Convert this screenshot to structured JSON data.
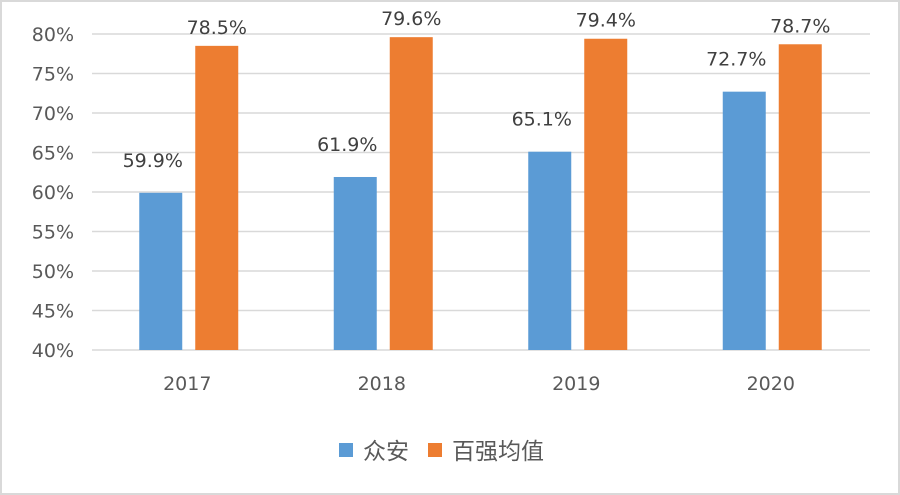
{
  "chart_data": {
    "type": "bar",
    "categories": [
      "2017",
      "2018",
      "2019",
      "2020"
    ],
    "series": [
      {
        "name": "众安",
        "values": [
          59.9,
          61.9,
          65.1,
          72.7
        ],
        "labels": [
          "59.9%",
          "61.9%",
          "65.1%",
          "72.7%"
        ],
        "color": "#5b9bd5"
      },
      {
        "name": "百强均值",
        "values": [
          78.5,
          79.6,
          79.4,
          78.7
        ],
        "labels": [
          "78.5%",
          "79.6%",
          "79.4%",
          "78.7%"
        ],
        "color": "#ed7d31"
      }
    ],
    "ylim": [
      40,
      80
    ],
    "yticks": [
      "40%",
      "45%",
      "50%",
      "55%",
      "60%",
      "65%",
      "70%",
      "75%",
      "80%"
    ],
    "grid": true,
    "legend": "bottom"
  }
}
